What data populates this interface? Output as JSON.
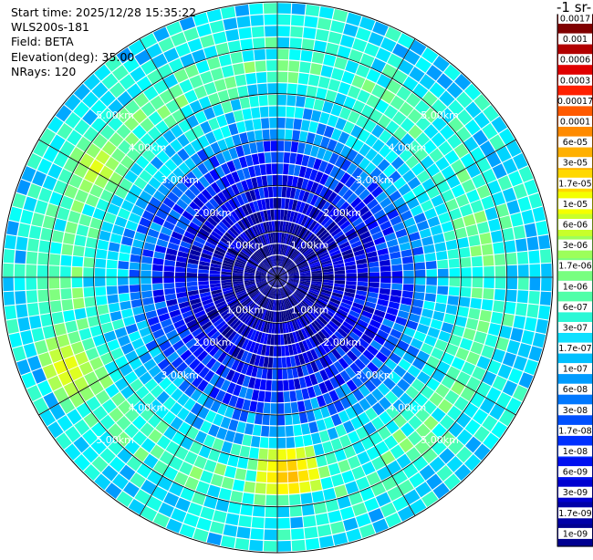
{
  "header": {
    "start_time": "Start time: 2025/12/28 15:35:22",
    "instrument": "WLS200s-181",
    "field": "Field: BETA",
    "elevation": "Elevation(deg): 35.00",
    "nrays": "NRays: 120"
  },
  "colorbar": {
    "unit_label": "-1 sr-",
    "labels": [
      "0.0017",
      "0.001",
      "0.0006",
      "0.0003",
      "0.00017",
      "0.0001",
      "6e-05",
      "3e-05",
      "1.7e-05",
      "1e-05",
      "6e-06",
      "3e-06",
      "1.7e-06",
      "1e-06",
      "6e-07",
      "3e-07",
      "1.7e-07",
      "1e-07",
      "6e-08",
      "3e-08",
      "1.7e-08",
      "1e-08",
      "6e-09",
      "3e-09",
      "1.7e-09",
      "1e-09"
    ],
    "colors": [
      "#800000",
      "#b20000",
      "#e00000",
      "#ff2000",
      "#ff5a00",
      "#ff8a00",
      "#ffb000",
      "#ffd800",
      "#f4ff00",
      "#c8ff2a",
      "#9cff5a",
      "#78ff80",
      "#50ffa8",
      "#2af8d6",
      "#10e0ff",
      "#00c0ff",
      "#009cff",
      "#0078ff",
      "#0050ff",
      "#0030ff",
      "#0010f0",
      "#0000d0",
      "#0000a8",
      "#000090"
    ]
  },
  "chart_data": {
    "type": "heatmap",
    "projection": "polar",
    "field": "BETA",
    "n_rays": 120,
    "range_rings_km": [
      1.0,
      2.0,
      3.0,
      4.0,
      5.0
    ],
    "ring_labels": [
      "1.00km",
      "2.00km",
      "3.00km",
      "4.00km",
      "5.00km"
    ],
    "max_range_km": 6.0,
    "spokes_deg": [
      0,
      30,
      60,
      90,
      120,
      150,
      180,
      210,
      240,
      270,
      300,
      330
    ],
    "colorscale": "log jet",
    "value_range": [
      1e-09,
      0.0017
    ],
    "background_value_by_range_km": [
      {
        "range_km": 0.5,
        "value": 1e-09
      },
      {
        "range_km": 1.5,
        "value": 3e-09
      },
      {
        "range_km": 2.5,
        "value": 1e-08
      },
      {
        "range_km": 3.5,
        "value": 1e-07
      },
      {
        "range_km": 4.5,
        "value": 6e-07
      },
      {
        "range_km": 5.5,
        "value": 1.7e-07
      }
    ],
    "hotspots": [
      {
        "azimuth_deg": 175,
        "range_km": 4.3,
        "value": 3e-05
      },
      {
        "azimuth_deg": 265,
        "range_km": 4.9,
        "value": 1.7e-06
      },
      {
        "azimuth_deg": 245,
        "range_km": 5.0,
        "value": 1e-05
      },
      {
        "azimuth_deg": 300,
        "range_km": 4.6,
        "value": 6e-06
      }
    ]
  }
}
